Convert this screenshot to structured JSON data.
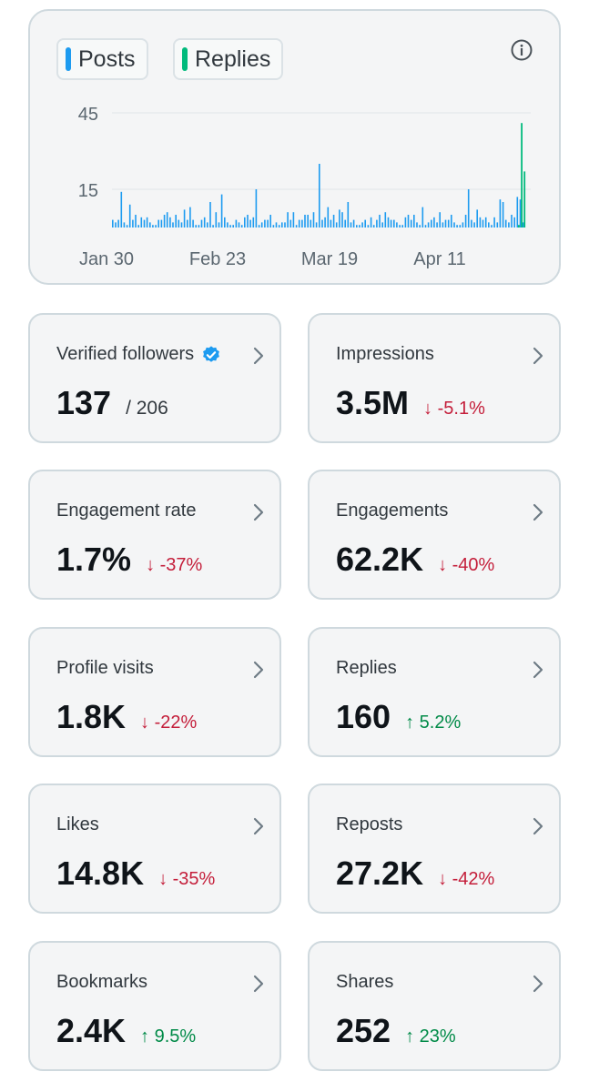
{
  "legend": {
    "posts": {
      "label": "Posts",
      "color": "#1d9bf0"
    },
    "replies": {
      "label": "Replies",
      "color": "#00ba7c"
    }
  },
  "info_icon": "info-icon",
  "chart_data": {
    "type": "bar",
    "x_ticks": [
      "Jan 30",
      "Feb 23",
      "Mar 19",
      "Apr 11"
    ],
    "y_ticks": [
      15,
      45
    ],
    "ylim": [
      0,
      50
    ],
    "series": [
      {
        "name": "Posts",
        "color": "#1d9bf0",
        "values": [
          3,
          2,
          3,
          14,
          2,
          1,
          9,
          3,
          5,
          1,
          4,
          3,
          4,
          2,
          1,
          1,
          3,
          3,
          5,
          6,
          4,
          2,
          5,
          3,
          2,
          7,
          3,
          8,
          3,
          1,
          1,
          3,
          4,
          2,
          10,
          1,
          6,
          2,
          13,
          4,
          2,
          1,
          1,
          3,
          2,
          1,
          4,
          5,
          3,
          4,
          15,
          1,
          2,
          3,
          3,
          5,
          1,
          2,
          1,
          2,
          2,
          6,
          3,
          6,
          1,
          3,
          3,
          5,
          5,
          3,
          6,
          2,
          25,
          3,
          4,
          8,
          3,
          5,
          2,
          7,
          6,
          3,
          10,
          2,
          3,
          1,
          1,
          2,
          3,
          1,
          4,
          1,
          3,
          5,
          2,
          6,
          4,
          3,
          3,
          2,
          1,
          1,
          4,
          5,
          3,
          5,
          2,
          1,
          8,
          1,
          2,
          3,
          4,
          2,
          6,
          2,
          3,
          3,
          5,
          2,
          1,
          1,
          2,
          5,
          15,
          3,
          2,
          7,
          4,
          3,
          4,
          2,
          1,
          4,
          2,
          11,
          10,
          3,
          2,
          5,
          4,
          12,
          11,
          2
        ]
      },
      {
        "name": "Replies",
        "color": "#00ba7c",
        "values": [
          1,
          41,
          22
        ]
      }
    ]
  },
  "cards": [
    {
      "label": "Verified followers",
      "value": "137",
      "extra": "/ 206",
      "verified": true
    },
    {
      "label": "Impressions",
      "value": "3.5M",
      "delta": "↓ -5.1%",
      "dir": "down"
    },
    {
      "label": "Engagement rate",
      "value": "1.7%",
      "delta": "↓ -37%",
      "dir": "down"
    },
    {
      "label": "Engagements",
      "value": "62.2K",
      "delta": "↓ -40%",
      "dir": "down"
    },
    {
      "label": "Profile visits",
      "value": "1.8K",
      "delta": "↓ -22%",
      "dir": "down"
    },
    {
      "label": "Replies",
      "value": "160",
      "delta": "↑ 5.2%",
      "dir": "up"
    },
    {
      "label": "Likes",
      "value": "14.8K",
      "delta": "↓ -35%",
      "dir": "down"
    },
    {
      "label": "Reposts",
      "value": "27.2K",
      "delta": "↓ -42%",
      "dir": "down"
    },
    {
      "label": "Bookmarks",
      "value": "2.4K",
      "delta": "↑ 9.5%",
      "dir": "up"
    },
    {
      "label": "Shares",
      "value": "252",
      "delta": "↑ 23%",
      "dir": "up"
    }
  ]
}
